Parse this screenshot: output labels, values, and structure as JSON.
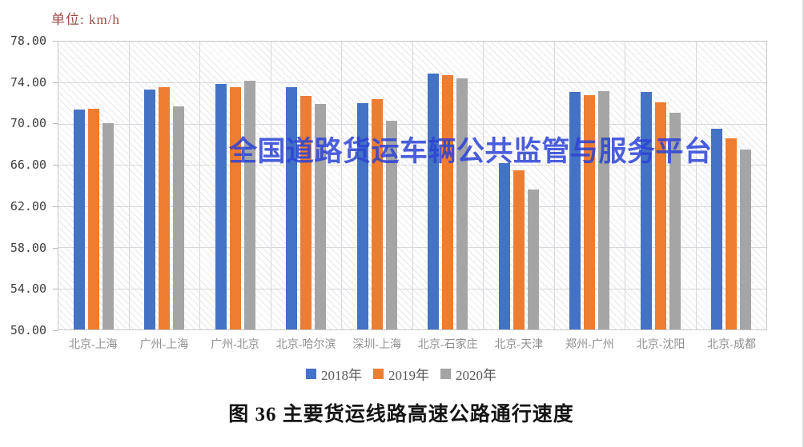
{
  "page": {
    "unit_label": "单位: km/h",
    "watermark": "全国道路货运车辆公共监管与服务平台",
    "caption": "图 36 主要货运线路高速公路通行速度"
  },
  "colors": {
    "series_2018_blue": "#4472C4",
    "series_2019_orange": "#ED7D31",
    "series_2020_gray": "#A5A5A5",
    "watermark_blue": "#2C42D6",
    "unit_label_red": "#9C4B45",
    "gridline_gray": "#d8d8dc"
  },
  "chart_data": {
    "type": "bar",
    "title": "图 36 主要货运线路高速公路通行速度",
    "unit": "km/h",
    "categories": [
      "北京-上海",
      "广州-上海",
      "广州-北京",
      "北京-哈尔滨",
      "深圳-上海",
      "北京-石家庄",
      "北京-天津",
      "郑州-广州",
      "北京-沈阳",
      "北京-成都"
    ],
    "series": [
      {
        "name": "2018年",
        "color": "#4472C4",
        "values": [
          71.4,
          73.3,
          73.9,
          73.6,
          72.0,
          74.9,
          66.2,
          73.1,
          73.1,
          69.5
        ]
      },
      {
        "name": "2019年",
        "color": "#ED7D31",
        "values": [
          71.5,
          73.6,
          73.6,
          72.7,
          72.4,
          74.7,
          65.5,
          72.8,
          72.1,
          68.6
        ]
      },
      {
        "name": "2020年",
        "color": "#A5A5A5",
        "values": [
          70.1,
          71.7,
          74.2,
          71.9,
          70.3,
          74.4,
          63.6,
          73.2,
          71.1,
          67.5
        ]
      }
    ],
    "ylim": [
      50,
      78
    ],
    "ytick_step": 4,
    "ytick_labels": [
      "78.00",
      "74.00",
      "70.00",
      "66.00",
      "62.00",
      "58.00",
      "54.00",
      "50.00"
    ],
    "grid": true,
    "legend_position": "bottom"
  }
}
